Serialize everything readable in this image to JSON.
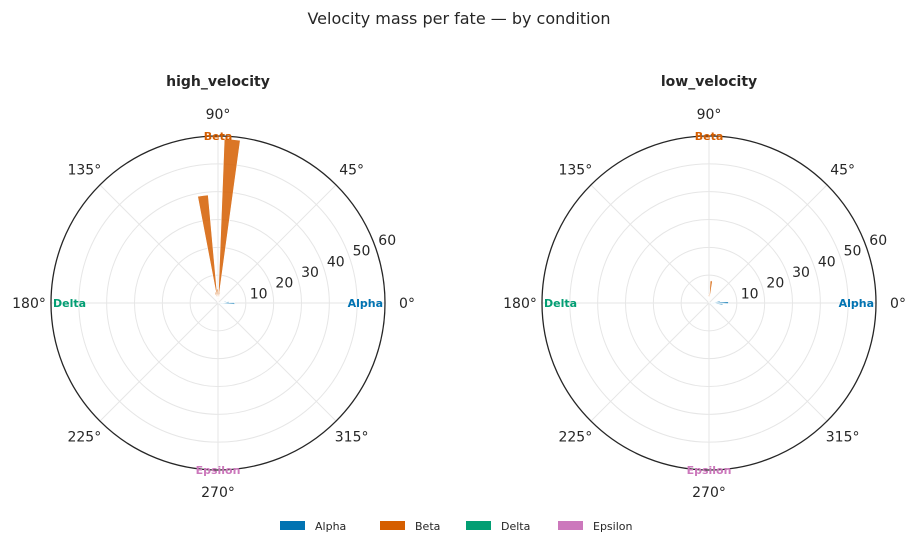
{
  "figure": {
    "title": "Velocity mass per fate — by condition"
  },
  "colors": {
    "Alpha": "#0173b2",
    "Beta": "#d55e00",
    "Delta": "#029e73",
    "Epsilon": "#cc78bc"
  },
  "legend": {
    "items": [
      "Alpha",
      "Beta",
      "Delta",
      "Epsilon"
    ]
  },
  "chart_data": [
    {
      "type": "polar_histogram",
      "title": "high_velocity",
      "angle_ticks": [
        "0°",
        "45°",
        "90°",
        "135°",
        "180°",
        "225°",
        "270°",
        "315°"
      ],
      "radial_ticks": [
        10,
        20,
        30,
        40,
        50,
        60
      ],
      "rlim": [
        0,
        60
      ],
      "fate_labels": [
        {
          "name": "Alpha",
          "angle_deg": 0
        },
        {
          "name": "Beta",
          "angle_deg": 90
        },
        {
          "name": "Delta",
          "angle_deg": 180
        },
        {
          "name": "Epsilon",
          "angle_deg": 270
        }
      ],
      "bars": [
        {
          "fate": "Alpha",
          "angle_deg": 353,
          "value": 2
        },
        {
          "fate": "Alpha",
          "angle_deg": 359,
          "value": 6
        },
        {
          "fate": "Alpha",
          "angle_deg": 5,
          "value": 4
        },
        {
          "fate": "Alpha",
          "angle_deg": 11,
          "value": 3
        },
        {
          "fate": "Beta",
          "angle_deg": 80,
          "value": 4
        },
        {
          "fate": "Beta",
          "angle_deg": 85,
          "value": 59
        },
        {
          "fate": "Beta",
          "angle_deg": 92,
          "value": 5
        },
        {
          "fate": "Beta",
          "angle_deg": 98,
          "value": 39
        },
        {
          "fate": "Beta",
          "angle_deg": 104,
          "value": 4
        }
      ],
      "grid": true
    },
    {
      "type": "polar_histogram",
      "title": "low_velocity",
      "angle_ticks": [
        "0°",
        "45°",
        "90°",
        "135°",
        "180°",
        "225°",
        "270°",
        "315°"
      ],
      "radial_ticks": [
        10,
        20,
        30,
        40,
        50,
        60
      ],
      "rlim": [
        0,
        60
      ],
      "fate_labels": [
        {
          "name": "Alpha",
          "angle_deg": 0
        },
        {
          "name": "Beta",
          "angle_deg": 90
        },
        {
          "name": "Delta",
          "angle_deg": 180
        },
        {
          "name": "Epsilon",
          "angle_deg": 270
        }
      ],
      "bars": [
        {
          "fate": "Alpha",
          "angle_deg": 355,
          "value": 5
        },
        {
          "fate": "Alpha",
          "angle_deg": 1,
          "value": 7
        },
        {
          "fate": "Alpha",
          "angle_deg": 7,
          "value": 4
        },
        {
          "fate": "Beta",
          "angle_deg": 84,
          "value": 8
        },
        {
          "fate": "Beta",
          "angle_deg": 92,
          "value": 3
        },
        {
          "fate": "Beta",
          "angle_deg": 100,
          "value": 2
        }
      ],
      "grid": true
    }
  ]
}
